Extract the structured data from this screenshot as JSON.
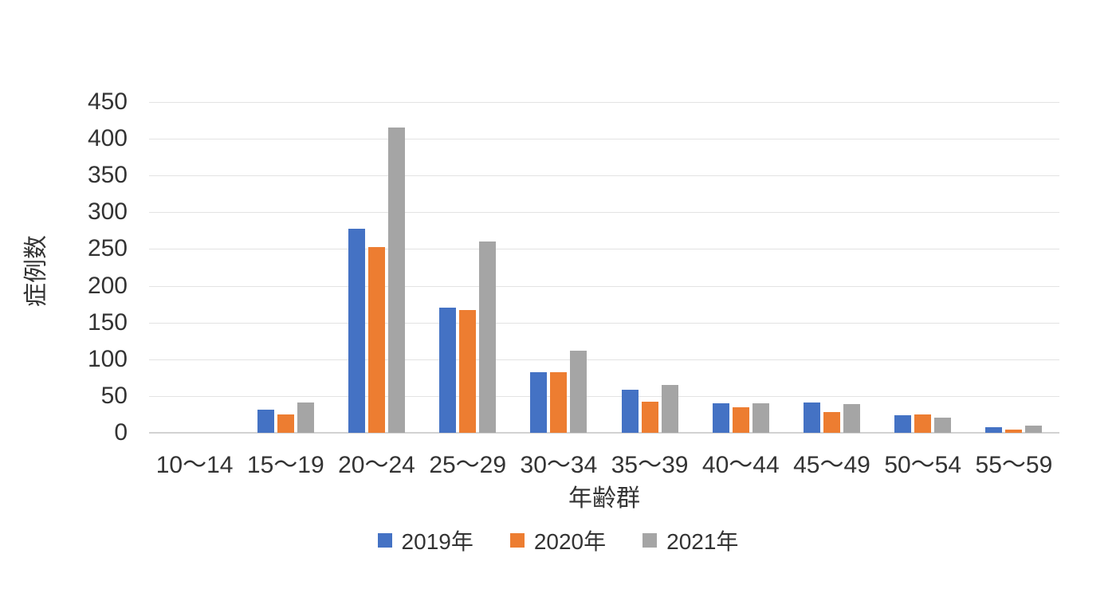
{
  "chart_data": {
    "type": "bar",
    "categories": [
      "10～14",
      "15～19",
      "20～24",
      "25～29",
      "30～34",
      "35～39",
      "40～44",
      "45～49",
      "50～54",
      "55～59"
    ],
    "series": [
      {
        "name": "2019年",
        "color": "#4472C4",
        "values": [
          0,
          31,
          278,
          170,
          82,
          59,
          40,
          41,
          24,
          8
        ]
      },
      {
        "name": "2020年",
        "color": "#ED7D31",
        "values": [
          0,
          25,
          253,
          167,
          82,
          42,
          35,
          28,
          25,
          4
        ]
      },
      {
        "name": "2021年",
        "color": "#A5A5A5",
        "values": [
          0,
          41,
          415,
          260,
          112,
          65,
          40,
          39,
          21,
          10
        ]
      }
    ],
    "title": "",
    "xlabel": "年齢群",
    "ylabel": "症例数",
    "ylim": [
      0,
      450
    ],
    "yticks": [
      0,
      50,
      100,
      150,
      200,
      250,
      300,
      350,
      400,
      450
    ],
    "grid": true,
    "legend_position": "bottom",
    "gridline_color": "#E3E3E3",
    "axis_line_color": "#D2D2D2",
    "text_color": "#333333",
    "background_color": "#FFFFFF"
  }
}
